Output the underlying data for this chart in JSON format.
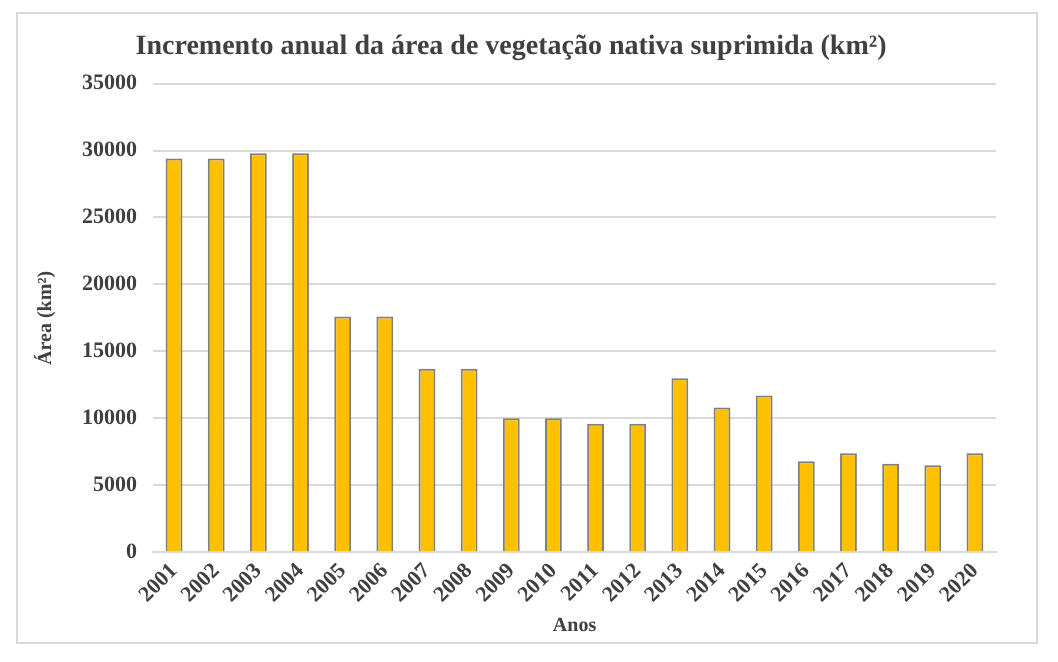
{
  "chart_data": {
    "type": "bar",
    "title": "Incremento anual da área de vegetação nativa suprimida (km²)",
    "xlabel": "Anos",
    "ylabel": "Área (km²)",
    "categories": [
      "2001",
      "2002",
      "2003",
      "2004",
      "2005",
      "2006",
      "2007",
      "2008",
      "2009",
      "2010",
      "2011",
      "2012",
      "2013",
      "2014",
      "2015",
      "2016",
      "2017",
      "2018",
      "2019",
      "2020"
    ],
    "values": [
      29400,
      29400,
      29800,
      29800,
      17600,
      17600,
      13700,
      13700,
      10000,
      10000,
      9600,
      9600,
      13000,
      10800,
      11700,
      6800,
      7400,
      6600,
      6500,
      7400
    ],
    "color": "#ffc000",
    "ylim": [
      0,
      35000
    ],
    "yticks": [
      0,
      5000,
      10000,
      15000,
      20000,
      25000,
      30000,
      35000
    ],
    "grid": "y",
    "legend": false
  }
}
